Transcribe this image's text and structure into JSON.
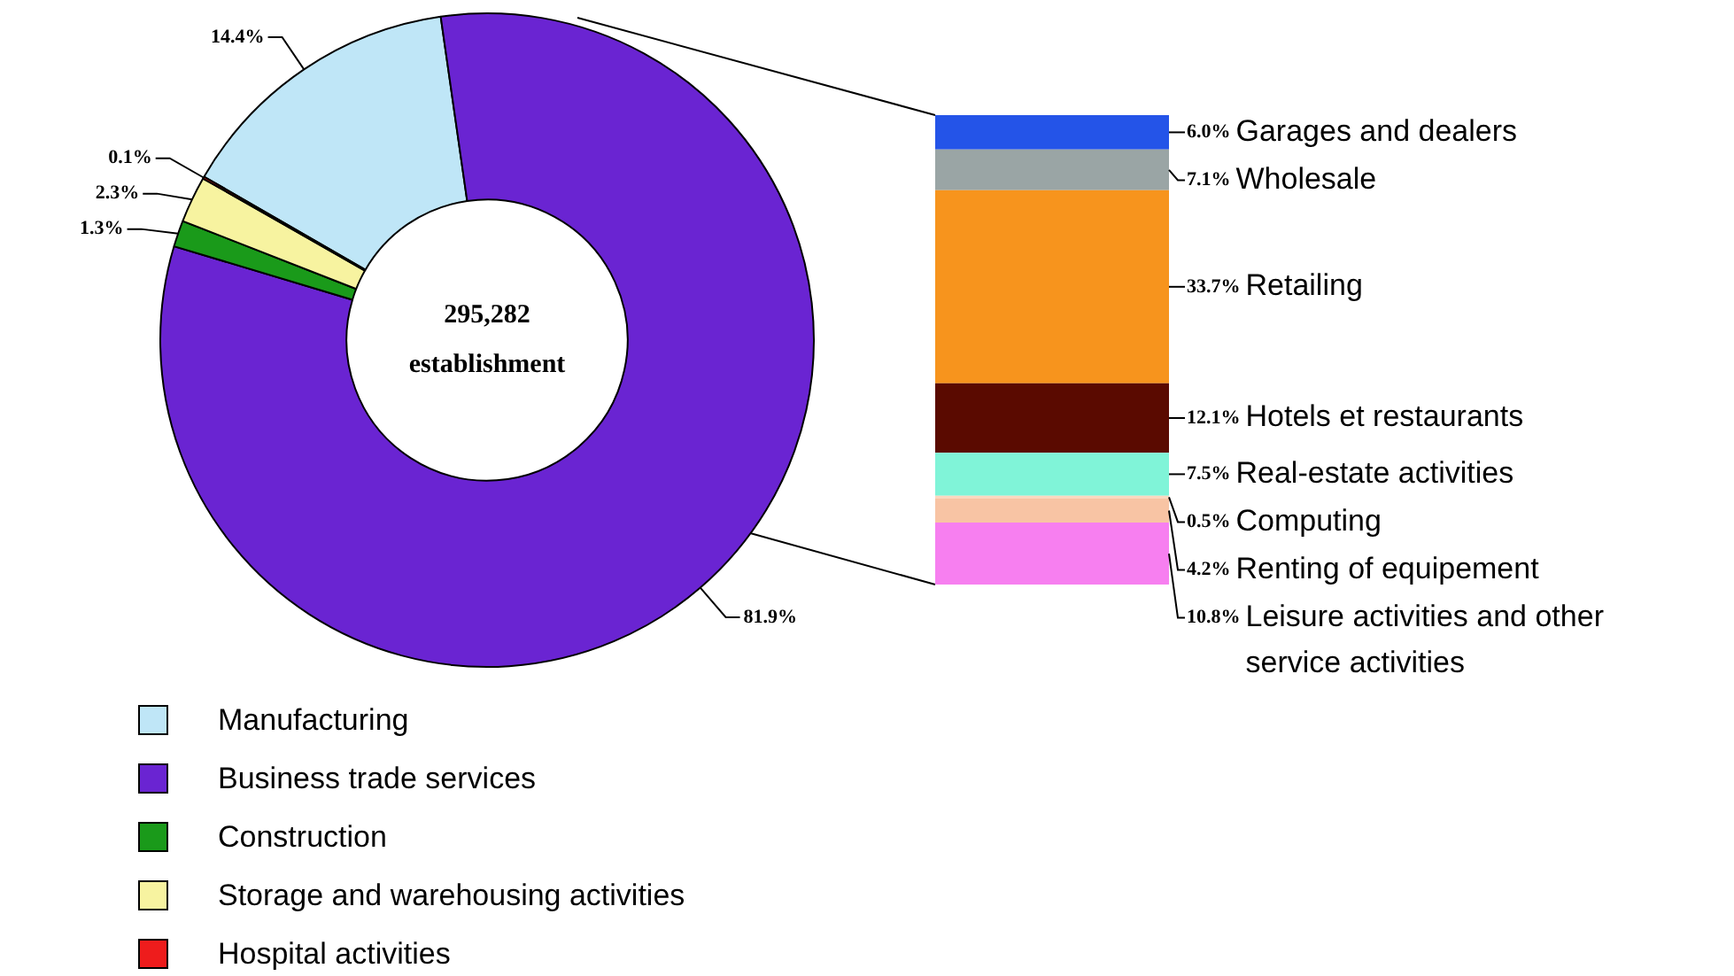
{
  "chart_data": [
    {
      "type": "donut",
      "categories": [
        "Manufacturing",
        "Business trade services",
        "Construction",
        "Storage and warehousing activities",
        "Hospital activities"
      ],
      "values": [
        14.4,
        81.9,
        1.3,
        2.3,
        0.1
      ],
      "colors": [
        "#bfe6f7",
        "#6a24d2",
        "#1a9a1a",
        "#f7f3a0",
        "#ee1c1c"
      ],
      "value_labels": [
        "14.4%",
        "81.9%",
        "1.3%",
        "2.3%",
        "0.1%"
      ],
      "annotations": [
        "295,282",
        "establishment"
      ],
      "legend": "bottom left"
    },
    {
      "type": "bar",
      "stacked": true,
      "categories": [
        null
      ],
      "series": [
        {
          "name": "Leisure activities and other service activities",
          "color": "#f77ff0",
          "values": [
            10.8
          ],
          "value_labels": [
            "10.8%"
          ]
        },
        {
          "name": "Renting of equipement",
          "color": "#f8c4a4",
          "values": [
            4.2
          ],
          "value_labels": [
            "4.2%"
          ]
        },
        {
          "name": "Computing",
          "color": "#fbd8c0",
          "values": [
            0.5
          ],
          "value_labels": [
            "0.5%"
          ]
        },
        {
          "name": "Real-estate activities",
          "color": "#80f4d8",
          "values": [
            7.5
          ],
          "value_labels": [
            "7.5%"
          ]
        },
        {
          "name": "Hotels et restaurants",
          "color": "#5a0a00",
          "values": [
            12.1
          ],
          "value_labels": [
            "12.1%"
          ]
        },
        {
          "name": "Retailing",
          "color": "#f7941d",
          "values": [
            33.7
          ],
          "value_labels": [
            "33.7%"
          ]
        },
        {
          "name": "Wholesale",
          "color": "#9aa5a5",
          "values": [
            7.1
          ],
          "value_labels": [
            "7.1%"
          ]
        },
        {
          "name": "Garages and dealers",
          "color": "#2454e8",
          "values": [
            6.0
          ],
          "value_labels": [
            "6.0%"
          ]
        }
      ]
    }
  ]
}
